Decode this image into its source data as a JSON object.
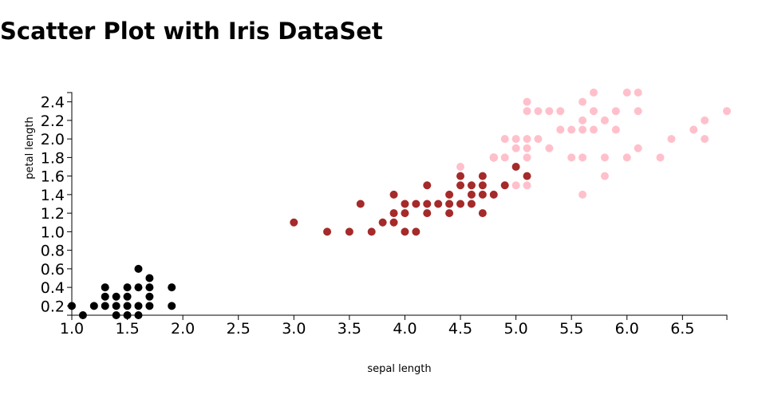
{
  "chart_data": {
    "type": "scatter",
    "title": "Scatter Plot with Iris DataSet",
    "xlabel": "sepal length",
    "ylabel": "petal length",
    "xlim": [
      1.0,
      6.9
    ],
    "ylim": [
      0.1,
      2.5
    ],
    "x_ticks": [
      "1.0",
      "1.5",
      "2.0",
      "2.5",
      "3.0",
      "3.5",
      "4.0",
      "4.5",
      "5.0",
      "5.5",
      "6.0",
      "6.5"
    ],
    "y_ticks": [
      "0.2",
      "0.4",
      "0.6",
      "0.8",
      "1.0",
      "1.2",
      "1.4",
      "1.6",
      "1.8",
      "2.0",
      "2.2",
      "2.4"
    ],
    "grid": false,
    "series": [
      {
        "color": "#000000",
        "points": [
          [
            1.0,
            0.2
          ],
          [
            1.1,
            0.1
          ],
          [
            1.2,
            0.2
          ],
          [
            1.3,
            0.2
          ],
          [
            1.3,
            0.3
          ],
          [
            1.3,
            0.4
          ],
          [
            1.4,
            0.1
          ],
          [
            1.4,
            0.2
          ],
          [
            1.4,
            0.3
          ],
          [
            1.5,
            0.1
          ],
          [
            1.5,
            0.2
          ],
          [
            1.5,
            0.3
          ],
          [
            1.5,
            0.4
          ],
          [
            1.6,
            0.1
          ],
          [
            1.6,
            0.2
          ],
          [
            1.6,
            0.4
          ],
          [
            1.6,
            0.6
          ],
          [
            1.7,
            0.2
          ],
          [
            1.7,
            0.3
          ],
          [
            1.7,
            0.4
          ],
          [
            1.7,
            0.5
          ],
          [
            1.9,
            0.2
          ],
          [
            1.9,
            0.4
          ]
        ]
      },
      {
        "color": "#a52a2a",
        "points": [
          [
            3.0,
            1.1
          ],
          [
            3.3,
            1.0
          ],
          [
            3.5,
            1.0
          ],
          [
            3.6,
            1.3
          ],
          [
            3.7,
            1.0
          ],
          [
            3.8,
            1.1
          ],
          [
            3.9,
            1.1
          ],
          [
            3.9,
            1.2
          ],
          [
            3.9,
            1.4
          ],
          [
            4.0,
            1.0
          ],
          [
            4.0,
            1.2
          ],
          [
            4.0,
            1.3
          ],
          [
            4.1,
            1.0
          ],
          [
            4.1,
            1.3
          ],
          [
            4.2,
            1.2
          ],
          [
            4.2,
            1.3
          ],
          [
            4.2,
            1.5
          ],
          [
            4.3,
            1.3
          ],
          [
            4.4,
            1.2
          ],
          [
            4.4,
            1.3
          ],
          [
            4.4,
            1.4
          ],
          [
            4.5,
            1.3
          ],
          [
            4.5,
            1.5
          ],
          [
            4.5,
            1.6
          ],
          [
            4.6,
            1.3
          ],
          [
            4.6,
            1.4
          ],
          [
            4.6,
            1.5
          ],
          [
            4.7,
            1.2
          ],
          [
            4.7,
            1.4
          ],
          [
            4.7,
            1.5
          ],
          [
            4.7,
            1.6
          ],
          [
            4.8,
            1.4
          ],
          [
            4.8,
            1.8
          ],
          [
            4.9,
            1.5
          ],
          [
            5.0,
            1.7
          ],
          [
            5.1,
            1.6
          ]
        ]
      },
      {
        "color": "#ffc0cb",
        "points": [
          [
            4.5,
            1.7
          ],
          [
            4.8,
            1.8
          ],
          [
            4.9,
            1.8
          ],
          [
            4.9,
            2.0
          ],
          [
            5.0,
            1.5
          ],
          [
            5.0,
            1.9
          ],
          [
            5.0,
            2.0
          ],
          [
            5.1,
            1.5
          ],
          [
            5.1,
            1.8
          ],
          [
            5.1,
            1.9
          ],
          [
            5.1,
            2.0
          ],
          [
            5.1,
            2.3
          ],
          [
            5.1,
            2.4
          ],
          [
            5.2,
            2.0
          ],
          [
            5.2,
            2.3
          ],
          [
            5.3,
            1.9
          ],
          [
            5.3,
            2.3
          ],
          [
            5.4,
            2.1
          ],
          [
            5.4,
            2.3
          ],
          [
            5.5,
            1.8
          ],
          [
            5.5,
            2.1
          ],
          [
            5.6,
            1.4
          ],
          [
            5.6,
            1.8
          ],
          [
            5.6,
            2.1
          ],
          [
            5.6,
            2.2
          ],
          [
            5.6,
            2.4
          ],
          [
            5.7,
            2.1
          ],
          [
            5.7,
            2.3
          ],
          [
            5.7,
            2.5
          ],
          [
            5.8,
            1.6
          ],
          [
            5.8,
            1.8
          ],
          [
            5.8,
            2.2
          ],
          [
            5.9,
            2.1
          ],
          [
            5.9,
            2.3
          ],
          [
            6.0,
            1.8
          ],
          [
            6.0,
            2.5
          ],
          [
            6.1,
            1.9
          ],
          [
            6.1,
            2.3
          ],
          [
            6.1,
            2.5
          ],
          [
            6.3,
            1.8
          ],
          [
            6.4,
            2.0
          ],
          [
            6.6,
            2.1
          ],
          [
            6.7,
            2.0
          ],
          [
            6.7,
            2.2
          ],
          [
            6.9,
            2.3
          ]
        ]
      }
    ]
  }
}
